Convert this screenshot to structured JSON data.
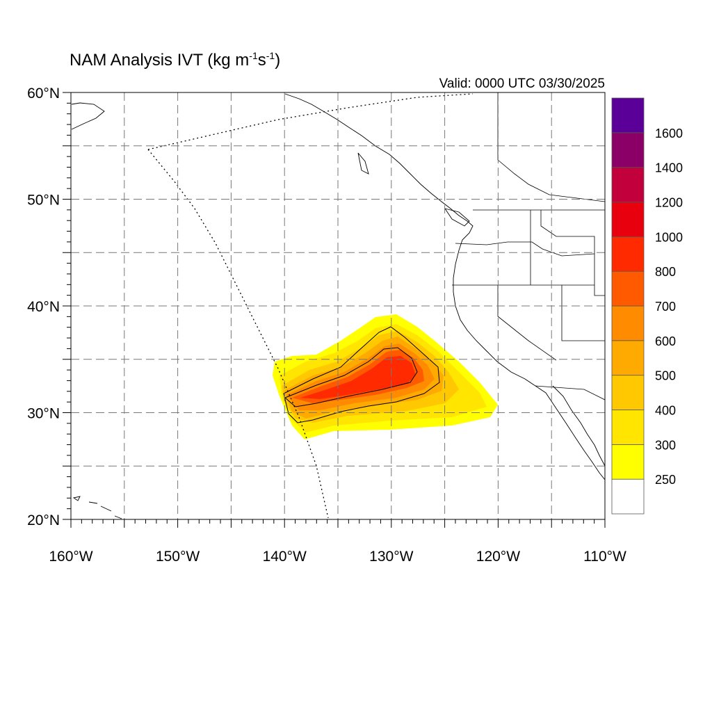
{
  "title": {
    "main": "NAM Analysis IVT (kg m",
    "sup1": "-1",
    "mid": "s",
    "sup2": "-1",
    "end": ")"
  },
  "valid_label": "Valid: 0000 UTC 03/30/2025",
  "map": {
    "lon_range": [
      -160,
      -110
    ],
    "lat_range": [
      20,
      60
    ],
    "lat_labels": [
      {
        "lat": 60,
        "text": "60°N"
      },
      {
        "lat": 50,
        "text": "50°N"
      },
      {
        "lat": 40,
        "text": "40°N"
      },
      {
        "lat": 30,
        "text": "30°N"
      },
      {
        "lat": 20,
        "text": "20°N"
      }
    ],
    "lon_labels": [
      {
        "lon": -160,
        "text": "160°W"
      },
      {
        "lon": -150,
        "text": "150°W"
      },
      {
        "lon": -140,
        "text": "140°W"
      },
      {
        "lon": -130,
        "text": "130°W"
      },
      {
        "lon": -120,
        "text": "120°W"
      },
      {
        "lon": -110,
        "text": "110°W"
      }
    ],
    "grid": "dashed every 5°",
    "land_color": "#ffffff",
    "outline_color": "#000000"
  },
  "colorbar": {
    "levels": [
      "250",
      "300",
      "400",
      "500",
      "600",
      "700",
      "800",
      "1000",
      "1200",
      "1400",
      "1600"
    ],
    "colors": [
      "#ffffff",
      "#ffff00",
      "#ffe500",
      "#ffc800",
      "#ffaa00",
      "#ff8c00",
      "#ff5a00",
      "#ff2a00",
      "#e8000f",
      "#c2003c",
      "#8a0066",
      "#5a0099"
    ]
  },
  "ivt_field": {
    "description": "atmospheric river plume",
    "core_center": {
      "lon": -131,
      "lat": 33.5
    },
    "max_category": "800-1000"
  }
}
